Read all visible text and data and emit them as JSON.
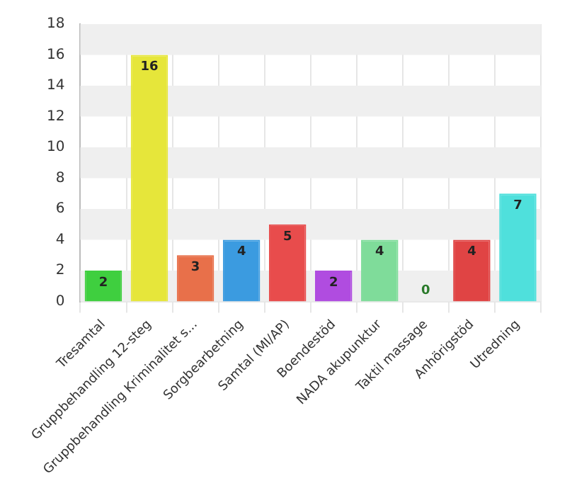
{
  "chart_data": {
    "type": "bar",
    "categories": [
      "Tresamtal",
      "Gruppbehandling 12-steg",
      "Gruppbehandling Kriminalitet s...",
      "Sorgbearbetning",
      "Samtal (MI/AP)",
      "Boendestöd",
      "NADA akupunktur",
      "Taktil massage",
      "Anhörigstöd",
      "Utredning"
    ],
    "values": [
      2,
      16,
      3,
      4,
      5,
      2,
      4,
      0,
      4,
      7
    ],
    "colors": [
      "#3fcf3f",
      "#e6e63a",
      "#e8704a",
      "#3b9be0",
      "#e84c4c",
      "#b04ce0",
      "#7fdc9a",
      "#cccccc",
      "#e04444",
      "#4fe0dc"
    ],
    "ylim": [
      0,
      18
    ],
    "yticks": [
      0,
      2,
      4,
      6,
      8,
      10,
      12,
      14,
      16,
      18
    ],
    "grid": true,
    "data_labels": true
  }
}
